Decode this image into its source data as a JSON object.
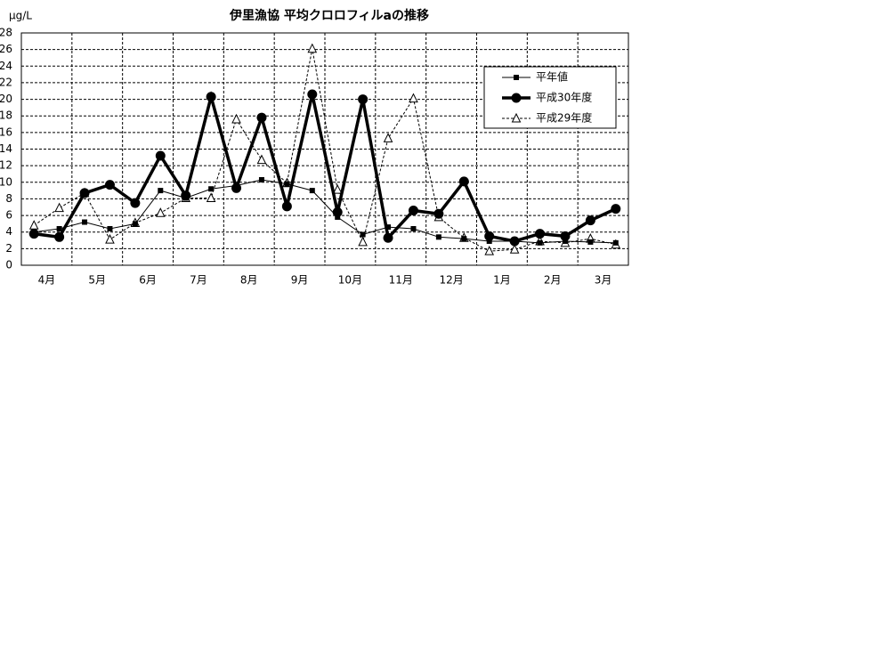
{
  "chart_data": {
    "type": "line",
    "title": "伊里漁協 平均クロロフィルaの推移",
    "y_label": "μg/L",
    "categories": [
      "4月",
      null,
      "5月",
      null,
      "6月",
      null,
      "7月",
      null,
      "8月",
      null,
      "9月",
      null,
      "10月",
      null,
      "11月",
      null,
      "12月",
      null,
      "1月",
      null,
      "2月",
      null,
      "3月",
      null
    ],
    "ylim": [
      0,
      28
    ],
    "yticks": [
      0,
      2,
      4,
      6,
      8,
      10,
      12,
      14,
      16,
      18,
      20,
      22,
      24,
      26,
      28
    ],
    "grid": true,
    "legend": "upper right",
    "series": [
      {
        "name": "平年値",
        "color": "#000000",
        "marker": "square",
        "line_style": "solid",
        "values": [
          4.0,
          4.4,
          5.2,
          4.4,
          5.0,
          9.0,
          8.1,
          9.2,
          9.6,
          10.3,
          9.8,
          9.0,
          5.8,
          3.7,
          4.6,
          4.4,
          3.4,
          3.2,
          2.9,
          2.9,
          2.7,
          2.9,
          2.8,
          2.7
        ]
      },
      {
        "name": "平成30年度",
        "color": "#000000",
        "marker": "circle",
        "line_style": "bold",
        "values": [
          3.8,
          3.4,
          8.7,
          9.7,
          7.5,
          13.2,
          8.4,
          20.3,
          9.3,
          17.8,
          7.1,
          20.6,
          6.4,
          20.0,
          3.3,
          6.6,
          6.2,
          10.1,
          3.5,
          2.9,
          3.8,
          3.5,
          5.4,
          6.8
        ]
      },
      {
        "name": "平成29年度",
        "color": "#000000",
        "marker": "triangle",
        "line_style": "dashed",
        "values": [
          4.8,
          6.9,
          8.7,
          3.1,
          5.1,
          6.3,
          8.1,
          8.1,
          17.6,
          12.7,
          9.9,
          26.1,
          9.1,
          2.8,
          15.3,
          20.1,
          5.8,
          3.3,
          1.7,
          1.9,
          2.9,
          2.7,
          3.2,
          2.5
        ]
      }
    ]
  }
}
